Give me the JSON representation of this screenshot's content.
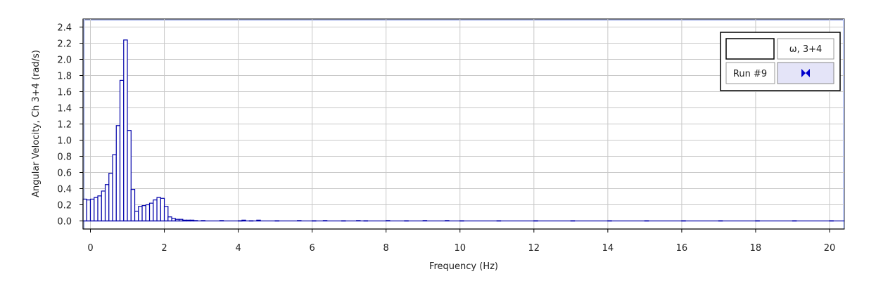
{
  "chart_data": {
    "type": "bar",
    "xlabel": "Frequency (Hz)",
    "ylabel": "Angular Velocity, Ch 3+4 (rad/s)",
    "xlim": [
      -0.2,
      20.4
    ],
    "ylim": [
      -0.1,
      2.5
    ],
    "grid": true,
    "bar_width": 0.1,
    "x_ticks": [
      0,
      2,
      4,
      6,
      8,
      10,
      12,
      14,
      16,
      18,
      20
    ],
    "x_tick_labels": [
      "0",
      "2",
      "4",
      "6",
      "8",
      "10",
      "12",
      "14",
      "16",
      "18",
      "20"
    ],
    "y_ticks": [
      0.0,
      0.2,
      0.4,
      0.6,
      0.8,
      1.0,
      1.2,
      1.4,
      1.6,
      1.8,
      2.0,
      2.2,
      2.4
    ],
    "y_tick_labels": [
      "0.0",
      "0.2",
      "0.4",
      "0.6",
      "0.8",
      "1.0",
      "1.2",
      "1.4",
      "1.6",
      "1.8",
      "2.0",
      "2.2",
      "2.4"
    ],
    "series": [
      {
        "name": "ω, 3+4",
        "color": "#0000aa",
        "x": [
          -0.2,
          -0.1,
          0.0,
          0.1,
          0.2,
          0.3,
          0.4,
          0.5,
          0.6,
          0.7,
          0.8,
          0.9,
          1.0,
          1.1,
          1.2,
          1.3,
          1.4,
          1.5,
          1.6,
          1.7,
          1.8,
          1.9,
          2.0,
          2.1,
          2.2,
          2.3,
          2.4,
          2.5,
          2.6,
          2.7,
          2.8,
          3.0,
          3.5,
          4.0,
          4.1,
          4.3,
          4.5,
          5.0,
          5.6,
          6.0,
          6.3,
          6.8,
          7.2,
          7.4,
          8.0,
          8.5,
          9.0,
          9.6,
          10.0,
          11.0,
          12.0,
          13.0,
          14.0,
          15.0,
          16.0,
          17.0,
          18.0,
          19.0,
          20.0
        ],
        "values": [
          0.27,
          0.26,
          0.27,
          0.29,
          0.31,
          0.37,
          0.45,
          0.59,
          0.82,
          1.18,
          1.74,
          2.24,
          1.12,
          0.39,
          0.12,
          0.18,
          0.19,
          0.2,
          0.22,
          0.26,
          0.29,
          0.28,
          0.18,
          0.05,
          0.03,
          0.02,
          0.02,
          0.01,
          0.01,
          0.01,
          0.005,
          0.005,
          0.005,
          0.003,
          0.01,
          0.003,
          0.01,
          0.003,
          0.005,
          0.003,
          0.005,
          0.003,
          0.005,
          0.003,
          0.005,
          0.003,
          0.005,
          0.005,
          0.003,
          0.003,
          0.003,
          0.003,
          0.003,
          0.003,
          0.003,
          0.003,
          0.003,
          0.003,
          0.003
        ]
      }
    ]
  },
  "legend": {
    "series_label": "ω, 3+4",
    "run_label": "Run #9",
    "style_icon": "bowtie-icon",
    "accent_color": "#0000cc"
  }
}
